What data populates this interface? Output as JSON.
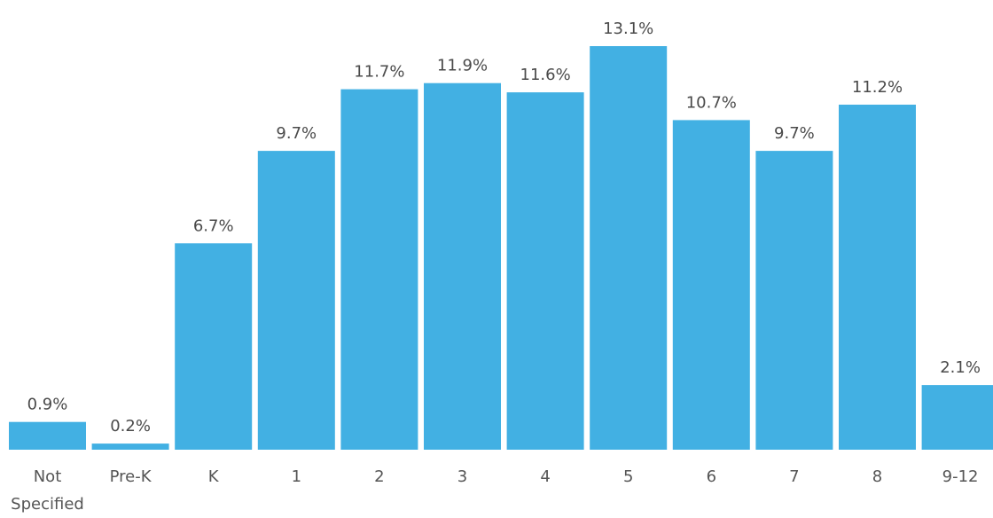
{
  "chart_data": {
    "type": "bar",
    "title": "",
    "xlabel": "",
    "ylabel": "",
    "categories": [
      "Not Specified",
      "Pre-K",
      "K",
      "1",
      "2",
      "3",
      "4",
      "5",
      "6",
      "7",
      "8",
      "9-12"
    ],
    "values": [
      0.9,
      0.2,
      6.7,
      9.7,
      11.7,
      11.9,
      11.6,
      13.1,
      10.7,
      9.7,
      11.2,
      2.1
    ],
    "value_labels": [
      "0.9%",
      "0.2%",
      "6.7%",
      "9.7%",
      "11.7%",
      "11.9%",
      "11.6%",
      "13.1%",
      "10.7%",
      "9.7%",
      "11.2%",
      "2.1%"
    ],
    "ylim": [
      0,
      13.1
    ],
    "grid": false,
    "legend": "none",
    "bar_color": "#42b0e3"
  }
}
